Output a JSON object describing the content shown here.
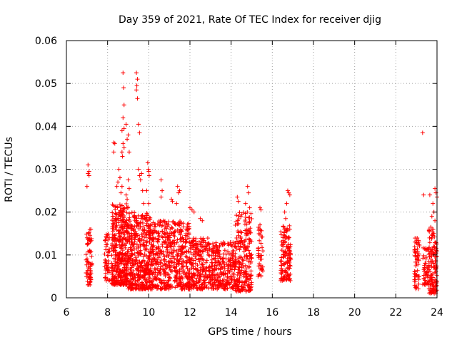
{
  "chart_data": {
    "type": "scatter",
    "title": "Day 359 of 2021, Rate Of TEC Index for receiver djig",
    "xlabel": "GPS time / hours",
    "ylabel": "ROTI / TECUs",
    "xlim": [
      6,
      24
    ],
    "ylim": [
      0,
      0.06
    ],
    "grid": true,
    "legend": "none",
    "marker": "+",
    "color": "#ff0000",
    "x_ticks": [
      6,
      8,
      10,
      12,
      14,
      16,
      18,
      20,
      22,
      24
    ],
    "x_tick_labels": [
      "6",
      "8",
      "10",
      "12",
      "14",
      "16",
      "18",
      "20",
      "22",
      "24"
    ],
    "y_ticks": [
      0,
      0.01,
      0.02,
      0.03,
      0.04,
      0.05,
      0.06
    ],
    "y_tick_labels": [
      "0",
      "0.01",
      "0.02",
      "0.03",
      "0.04",
      "0.05",
      "0.06"
    ],
    "dense_segments": [
      {
        "x_start": 6.95,
        "x_end": 7.25,
        "y_min": 0.003,
        "y_max": 0.016,
        "count": 70
      },
      {
        "x_start": 7.85,
        "x_end": 8.1,
        "y_min": 0.004,
        "y_max": 0.015,
        "count": 50
      },
      {
        "x_start": 8.2,
        "x_end": 9.0,
        "y_min": 0.003,
        "y_max": 0.022,
        "count": 380
      },
      {
        "x_start": 9.0,
        "x_end": 10.1,
        "y_min": 0.002,
        "y_max": 0.02,
        "count": 420
      },
      {
        "x_start": 10.1,
        "x_end": 11.0,
        "y_min": 0.002,
        "y_max": 0.018,
        "count": 260
      },
      {
        "x_start": 11.0,
        "x_end": 12.0,
        "y_min": 0.002,
        "y_max": 0.018,
        "count": 260
      },
      {
        "x_start": 12.0,
        "x_end": 13.0,
        "y_min": 0.002,
        "y_max": 0.014,
        "count": 220
      },
      {
        "x_start": 13.0,
        "x_end": 14.2,
        "y_min": 0.002,
        "y_max": 0.013,
        "count": 260
      },
      {
        "x_start": 14.2,
        "x_end": 15.0,
        "y_min": 0.0015,
        "y_max": 0.02,
        "count": 240
      },
      {
        "x_start": 15.3,
        "x_end": 15.55,
        "y_min": 0.005,
        "y_max": 0.018,
        "count": 40
      },
      {
        "x_start": 16.4,
        "x_end": 16.9,
        "y_min": 0.004,
        "y_max": 0.017,
        "count": 130
      },
      {
        "x_start": 22.9,
        "x_end": 23.15,
        "y_min": 0.002,
        "y_max": 0.014,
        "count": 60
      },
      {
        "x_start": 23.3,
        "x_end": 23.6,
        "y_min": 0.003,
        "y_max": 0.012,
        "count": 45
      },
      {
        "x_start": 23.6,
        "x_end": 24.0,
        "y_min": 0.001,
        "y_max": 0.016,
        "count": 130
      }
    ],
    "points": [
      [
        7.0,
        0.026
      ],
      [
        7.05,
        0.029
      ],
      [
        7.1,
        0.0285
      ],
      [
        7.05,
        0.031
      ],
      [
        7.1,
        0.0295
      ],
      [
        8.3,
        0.034
      ],
      [
        8.35,
        0.036
      ],
      [
        8.3,
        0.0362
      ],
      [
        8.45,
        0.026
      ],
      [
        8.5,
        0.027
      ],
      [
        8.6,
        0.028
      ],
      [
        8.65,
        0.0245
      ],
      [
        8.7,
        0.026
      ],
      [
        8.55,
        0.03
      ],
      [
        8.7,
        0.034
      ],
      [
        8.75,
        0.0525
      ],
      [
        8.78,
        0.049
      ],
      [
        8.8,
        0.045
      ],
      [
        8.75,
        0.042
      ],
      [
        8.7,
        0.039
      ],
      [
        8.8,
        0.0395
      ],
      [
        8.75,
        0.036
      ],
      [
        8.8,
        0.035
      ],
      [
        8.72,
        0.033
      ],
      [
        8.9,
        0.0405
      ],
      [
        9.0,
        0.038
      ],
      [
        8.95,
        0.037
      ],
      [
        9.05,
        0.034
      ],
      [
        9.0,
        0.0275
      ],
      [
        8.9,
        0.024
      ],
      [
        8.95,
        0.023
      ],
      [
        9.05,
        0.0255
      ],
      [
        9.4,
        0.0525
      ],
      [
        9.45,
        0.051
      ],
      [
        9.42,
        0.0495
      ],
      [
        9.4,
        0.0485
      ],
      [
        9.45,
        0.0465
      ],
      [
        9.5,
        0.0405
      ],
      [
        9.55,
        0.0385
      ],
      [
        9.5,
        0.03
      ],
      [
        9.55,
        0.0285
      ],
      [
        9.6,
        0.0275
      ],
      [
        9.65,
        0.029
      ],
      [
        9.7,
        0.025
      ],
      [
        9.75,
        0.022
      ],
      [
        9.95,
        0.0315
      ],
      [
        9.98,
        0.03
      ],
      [
        10.0,
        0.0295
      ],
      [
        10.02,
        0.0285
      ],
      [
        9.9,
        0.025
      ],
      [
        10.0,
        0.022
      ],
      [
        10.6,
        0.0275
      ],
      [
        10.65,
        0.025
      ],
      [
        10.6,
        0.0235
      ],
      [
        11.1,
        0.023
      ],
      [
        11.15,
        0.0225
      ],
      [
        11.4,
        0.026
      ],
      [
        11.45,
        0.0245
      ],
      [
        11.5,
        0.025
      ],
      [
        11.35,
        0.022
      ],
      [
        12.0,
        0.021
      ],
      [
        12.1,
        0.0205
      ],
      [
        12.2,
        0.02
      ],
      [
        12.5,
        0.0185
      ],
      [
        12.6,
        0.018
      ],
      [
        14.8,
        0.026
      ],
      [
        14.85,
        0.0245
      ],
      [
        14.3,
        0.0235
      ],
      [
        14.35,
        0.0225
      ],
      [
        14.7,
        0.022
      ],
      [
        14.9,
        0.021
      ],
      [
        15.4,
        0.021
      ],
      [
        15.45,
        0.0205
      ],
      [
        16.75,
        0.025
      ],
      [
        16.8,
        0.0245
      ],
      [
        16.85,
        0.024
      ],
      [
        16.7,
        0.022
      ],
      [
        16.6,
        0.02
      ],
      [
        16.65,
        0.0185
      ],
      [
        23.3,
        0.0385
      ],
      [
        23.35,
        0.024
      ],
      [
        23.65,
        0.024
      ],
      [
        23.9,
        0.0255
      ],
      [
        23.95,
        0.0245
      ],
      [
        24.0,
        0.0235
      ],
      [
        23.8,
        0.022
      ],
      [
        23.85,
        0.02
      ],
      [
        23.75,
        0.019
      ],
      [
        23.9,
        0.018
      ],
      [
        23.7,
        0.0165
      ]
    ]
  }
}
